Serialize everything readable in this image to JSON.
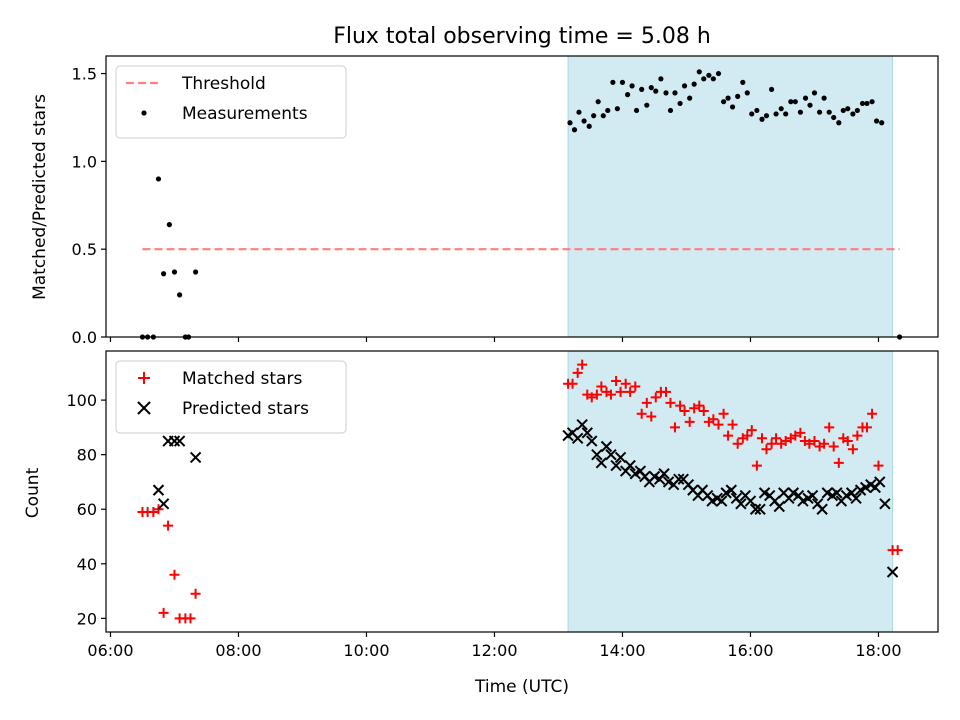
{
  "title": "Flux total observing time = 5.08 h",
  "colors": {
    "threshold": "#ff7f7f",
    "measurements": "#000000",
    "matched": "#ff0000",
    "predicted": "#000000",
    "span": "#add8e6"
  },
  "chart_data": [
    {
      "type": "scatter",
      "ylabel": "Matched/Predicted stars",
      "xlim": [
        5.93,
        18.93
      ],
      "ylim": [
        0.0,
        1.6
      ],
      "yticks": [
        0.0,
        0.5,
        1.0,
        1.5
      ],
      "ytick_labels": [
        "0.0",
        "0.5",
        "1.0",
        "1.5"
      ],
      "shaded_span": [
        13.15,
        18.22
      ],
      "legend_position": "upper left",
      "threshold": {
        "name": "Threshold",
        "x": [
          6.5,
          18.33
        ],
        "y": 0.5
      },
      "series": [
        {
          "name": "Measurements",
          "marker": "dot",
          "points": [
            [
              6.5,
              0
            ],
            [
              6.58,
              0
            ],
            [
              6.67,
              0
            ],
            [
              6.75,
              0.9
            ],
            [
              6.83,
              0.36
            ],
            [
              6.92,
              0.64
            ],
            [
              7.0,
              0.37
            ],
            [
              7.08,
              0.24
            ],
            [
              7.17,
              0
            ],
            [
              7.22,
              0
            ],
            [
              7.33,
              0.37
            ],
            [
              13.18,
              1.22
            ],
            [
              13.25,
              1.18
            ],
            [
              13.32,
              1.28
            ],
            [
              13.4,
              1.23
            ],
            [
              13.48,
              1.2
            ],
            [
              13.55,
              1.26
            ],
            [
              13.62,
              1.34
            ],
            [
              13.7,
              1.26
            ],
            [
              13.77,
              1.29
            ],
            [
              13.85,
              1.45
            ],
            [
              13.92,
              1.3
            ],
            [
              14.0,
              1.45
            ],
            [
              14.08,
              1.38
            ],
            [
              14.15,
              1.43
            ],
            [
              14.22,
              1.29
            ],
            [
              14.3,
              1.41
            ],
            [
              14.38,
              1.32
            ],
            [
              14.45,
              1.42
            ],
            [
              14.52,
              1.4
            ],
            [
              14.6,
              1.47
            ],
            [
              14.68,
              1.39
            ],
            [
              14.75,
              1.29
            ],
            [
              14.82,
              1.39
            ],
            [
              14.9,
              1.33
            ],
            [
              14.97,
              1.43
            ],
            [
              15.05,
              1.36
            ],
            [
              15.12,
              1.44
            ],
            [
              15.2,
              1.51
            ],
            [
              15.27,
              1.47
            ],
            [
              15.35,
              1.49
            ],
            [
              15.42,
              1.47
            ],
            [
              15.5,
              1.5
            ],
            [
              15.58,
              1.34
            ],
            [
              15.65,
              1.36
            ],
            [
              15.72,
              1.31
            ],
            [
              15.8,
              1.37
            ],
            [
              15.88,
              1.45
            ],
            [
              15.95,
              1.39
            ],
            [
              16.02,
              1.27
            ],
            [
              16.1,
              1.29
            ],
            [
              16.18,
              1.24
            ],
            [
              16.25,
              1.26
            ],
            [
              16.33,
              1.41
            ],
            [
              16.4,
              1.27
            ],
            [
              16.48,
              1.3
            ],
            [
              16.55,
              1.27
            ],
            [
              16.63,
              1.34
            ],
            [
              16.7,
              1.34
            ],
            [
              16.78,
              1.28
            ],
            [
              16.86,
              1.36
            ],
            [
              16.93,
              1.32
            ],
            [
              17.0,
              1.39
            ],
            [
              17.08,
              1.28
            ],
            [
              17.15,
              1.36
            ],
            [
              17.23,
              1.28
            ],
            [
              17.3,
              1.25
            ],
            [
              17.38,
              1.22
            ],
            [
              17.45,
              1.29
            ],
            [
              17.52,
              1.3
            ],
            [
              17.6,
              1.27
            ],
            [
              17.67,
              1.29
            ],
            [
              17.75,
              1.33
            ],
            [
              17.82,
              1.33
            ],
            [
              17.9,
              1.34
            ],
            [
              17.97,
              1.23
            ],
            [
              18.05,
              1.22
            ],
            [
              18.33,
              0
            ]
          ]
        }
      ]
    },
    {
      "type": "scatter",
      "xlabel": "Time (UTC)",
      "ylabel": "Count",
      "xlim": [
        5.93,
        18.93
      ],
      "ylim": [
        15,
        118
      ],
      "xticks": [
        6,
        8,
        10,
        12,
        14,
        16,
        18
      ],
      "xtick_labels": [
        "06:00",
        "08:00",
        "10:00",
        "12:00",
        "14:00",
        "16:00",
        "18:00"
      ],
      "yticks": [
        20,
        40,
        60,
        80,
        100
      ],
      "ytick_labels": [
        "20",
        "40",
        "60",
        "80",
        "100"
      ],
      "shaded_span": [
        13.15,
        18.22
      ],
      "legend_position": "upper left",
      "series": [
        {
          "name": "Matched stars",
          "marker": "plus",
          "points": [
            [
              6.5,
              59
            ],
            [
              6.58,
              59
            ],
            [
              6.67,
              59
            ],
            [
              6.75,
              60
            ],
            [
              6.83,
              22
            ],
            [
              6.9,
              54
            ],
            [
              7.0,
              36
            ],
            [
              7.08,
              20
            ],
            [
              7.17,
              20
            ],
            [
              7.25,
              20
            ],
            [
              7.33,
              29
            ],
            [
              13.15,
              106
            ],
            [
              13.22,
              106
            ],
            [
              13.3,
              110
            ],
            [
              13.37,
              113
            ],
            [
              13.45,
              102
            ],
            [
              13.52,
              101
            ],
            [
              13.6,
              102
            ],
            [
              13.67,
              105
            ],
            [
              13.75,
              103
            ],
            [
              13.82,
              102
            ],
            [
              13.9,
              107
            ],
            [
              13.97,
              103
            ],
            [
              14.05,
              106
            ],
            [
              14.12,
              103
            ],
            [
              14.2,
              105
            ],
            [
              14.3,
              95
            ],
            [
              14.38,
              99
            ],
            [
              14.45,
              94
            ],
            [
              14.52,
              101
            ],
            [
              14.6,
              103
            ],
            [
              14.68,
              103
            ],
            [
              14.75,
              99
            ],
            [
              14.82,
              90
            ],
            [
              14.9,
              98
            ],
            [
              14.97,
              96
            ],
            [
              15.05,
              92
            ],
            [
              15.12,
              97
            ],
            [
              15.2,
              98
            ],
            [
              15.27,
              96
            ],
            [
              15.35,
              92
            ],
            [
              15.42,
              93
            ],
            [
              15.5,
              91
            ],
            [
              15.58,
              95
            ],
            [
              15.65,
              87
            ],
            [
              15.72,
              91
            ],
            [
              15.8,
              84
            ],
            [
              15.88,
              86
            ],
            [
              15.95,
              87
            ],
            [
              16.02,
              89
            ],
            [
              16.1,
              76
            ],
            [
              16.18,
              86
            ],
            [
              16.25,
              82
            ],
            [
              16.33,
              84
            ],
            [
              16.4,
              86
            ],
            [
              16.48,
              84
            ],
            [
              16.55,
              85
            ],
            [
              16.63,
              86
            ],
            [
              16.7,
              87
            ],
            [
              16.78,
              88
            ],
            [
              16.85,
              85
            ],
            [
              16.92,
              84
            ],
            [
              17.0,
              85
            ],
            [
              17.08,
              83
            ],
            [
              17.15,
              84
            ],
            [
              17.23,
              90
            ],
            [
              17.3,
              83
            ],
            [
              17.38,
              77
            ],
            [
              17.45,
              86
            ],
            [
              17.52,
              85
            ],
            [
              17.6,
              82
            ],
            [
              17.67,
              87
            ],
            [
              17.75,
              90
            ],
            [
              17.82,
              90
            ],
            [
              17.9,
              95
            ],
            [
              18.0,
              76
            ],
            [
              18.22,
              45
            ],
            [
              18.3,
              45
            ]
          ]
        },
        {
          "name": "Predicted stars",
          "marker": "x",
          "points": [
            [
              6.75,
              67
            ],
            [
              6.83,
              62
            ],
            [
              6.9,
              85
            ],
            [
              7.0,
              85
            ],
            [
              7.08,
              85
            ],
            [
              7.33,
              79
            ],
            [
              13.15,
              87
            ],
            [
              13.22,
              88
            ],
            [
              13.3,
              86
            ],
            [
              13.37,
              91
            ],
            [
              13.45,
              88
            ],
            [
              13.52,
              85
            ],
            [
              13.6,
              80
            ],
            [
              13.67,
              77
            ],
            [
              13.75,
              83
            ],
            [
              13.82,
              80
            ],
            [
              13.9,
              76
            ],
            [
              13.97,
              79
            ],
            [
              14.05,
              74
            ],
            [
              14.12,
              76
            ],
            [
              14.2,
              73
            ],
            [
              14.28,
              74
            ],
            [
              14.35,
              72
            ],
            [
              14.42,
              70
            ],
            [
              14.5,
              72
            ],
            [
              14.58,
              71
            ],
            [
              14.65,
              73
            ],
            [
              14.72,
              70
            ],
            [
              14.8,
              69
            ],
            [
              14.88,
              71
            ],
            [
              14.95,
              71
            ],
            [
              15.03,
              69
            ],
            [
              15.1,
              67
            ],
            [
              15.18,
              65
            ],
            [
              15.25,
              67
            ],
            [
              15.33,
              65
            ],
            [
              15.4,
              63
            ],
            [
              15.48,
              64
            ],
            [
              15.55,
              63
            ],
            [
              15.62,
              66
            ],
            [
              15.7,
              67
            ],
            [
              15.78,
              64
            ],
            [
              15.85,
              62
            ],
            [
              15.92,
              65
            ],
            [
              16.0,
              63
            ],
            [
              16.08,
              60
            ],
            [
              16.15,
              60
            ],
            [
              16.22,
              66
            ],
            [
              16.3,
              65
            ],
            [
              16.38,
              63
            ],
            [
              16.45,
              61
            ],
            [
              16.52,
              66
            ],
            [
              16.6,
              64
            ],
            [
              16.67,
              66
            ],
            [
              16.75,
              65
            ],
            [
              16.82,
              63
            ],
            [
              16.9,
              64
            ],
            [
              16.97,
              65
            ],
            [
              17.05,
              62
            ],
            [
              17.12,
              60
            ],
            [
              17.2,
              66
            ],
            [
              17.28,
              65
            ],
            [
              17.35,
              66
            ],
            [
              17.42,
              63
            ],
            [
              17.5,
              65
            ],
            [
              17.58,
              66
            ],
            [
              17.65,
              64
            ],
            [
              17.72,
              67
            ],
            [
              17.8,
              68
            ],
            [
              17.88,
              69
            ],
            [
              17.95,
              68
            ],
            [
              18.02,
              70
            ],
            [
              18.1,
              62
            ],
            [
              18.22,
              37
            ]
          ]
        }
      ]
    }
  ]
}
